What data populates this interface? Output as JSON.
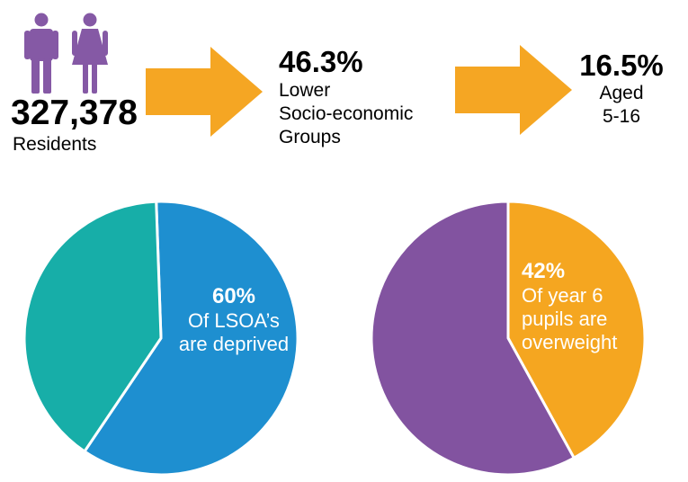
{
  "stats": {
    "residents": {
      "value": "327,378",
      "label": "Residents",
      "icons": [
        "male-person-icon",
        "female-person-icon"
      ]
    },
    "socioeconomic": {
      "value": "46.3%",
      "label_lines": [
        "Lower",
        "Socio-economic",
        "Groups"
      ]
    },
    "aged": {
      "value": "16.5%",
      "label_lines": [
        "Aged",
        "5-16"
      ]
    }
  },
  "colors": {
    "icon_purple": "#8559A5",
    "arrow_orange": "#F5A623",
    "teal": "#17AEA8",
    "blue": "#1E8FD0",
    "purple": "#8253A0",
    "orange": "#F5A620",
    "label_white": "#FFFFFF"
  },
  "chart_data": [
    {
      "type": "pie",
      "values": [
        60,
        40
      ],
      "colors": [
        "#1E8FD0",
        "#17AEA8"
      ],
      "start_angle_deg": -2,
      "annotation": {
        "pct": "60%",
        "lines": [
          "Of LSOA’s",
          "are deprived"
        ]
      }
    },
    {
      "type": "pie",
      "values": [
        42,
        58
      ],
      "colors": [
        "#F5A620",
        "#8253A0"
      ],
      "start_angle_deg": 0,
      "annotation": {
        "pct": "42%",
        "lines": [
          "Of year 6",
          "pupils are",
          "overweight"
        ]
      }
    }
  ]
}
